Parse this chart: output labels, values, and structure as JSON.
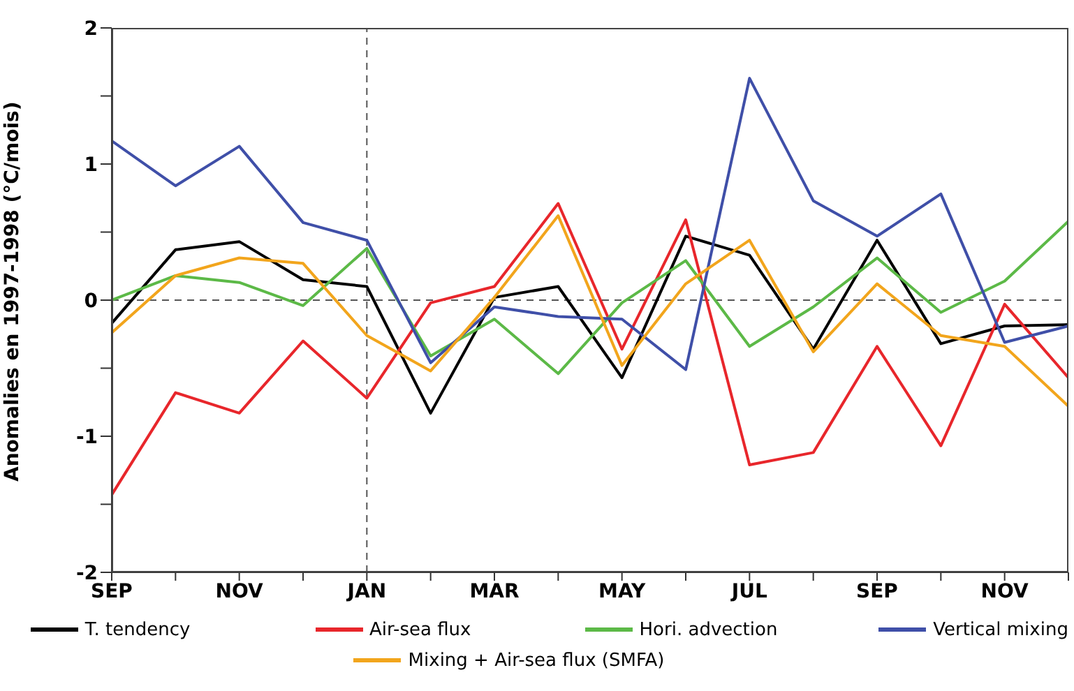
{
  "chart_data": {
    "type": "line",
    "ylabel": "Anomalies en 1997-1998 (°C/mois)",
    "categories": [
      "SEP",
      null,
      "NOV",
      null,
      "JAN",
      null,
      "MAR",
      null,
      "MAY",
      null,
      "JUL",
      null,
      "SEP",
      null,
      "NOV",
      null
    ],
    "ylim": [
      -2,
      2
    ],
    "yticks": [
      -2,
      {
        "value": -1.5,
        "label": null
      },
      -1,
      {
        "value": -0.5,
        "label": null
      },
      0,
      {
        "value": 0.5,
        "label": null
      },
      1,
      {
        "value": 1.5,
        "label": null
      },
      2
    ],
    "series": [
      {
        "name": "T. tendency",
        "color": "#000000",
        "values": [
          -0.17,
          0.37,
          0.43,
          0.15,
          0.1,
          -0.83,
          0.02,
          0.1,
          -0.57,
          0.47,
          0.33,
          -0.36,
          0.44,
          -0.32,
          -0.19,
          -0.18
        ]
      },
      {
        "name": "Air-sea flux",
        "color": "#e8262b",
        "values": [
          -1.43,
          -0.68,
          -0.83,
          -0.3,
          -0.72,
          -0.02,
          0.1,
          0.71,
          -0.36,
          0.59,
          -1.21,
          -1.12,
          -0.34,
          -1.07,
          -0.03,
          -0.57
        ]
      },
      {
        "name": "Hori. advection",
        "color": "#5cb947",
        "values": [
          0,
          0.18,
          0.13,
          -0.04,
          0.38,
          -0.41,
          -0.14,
          -0.54,
          -0.02,
          0.29,
          -0.34,
          -0.05,
          0.31,
          -0.09,
          0.14,
          0.58
        ]
      },
      {
        "name": "Vertical mixing",
        "color": "#3f4fa8",
        "values": [
          1.17,
          0.84,
          1.13,
          0.57,
          0.44,
          -0.46,
          -0.05,
          -0.12,
          -0.14,
          -0.51,
          1.63,
          0.73,
          0.47,
          0.78,
          -0.31,
          -0.19
        ]
      },
      {
        "name": "Mixing + Air-sea flux (SMFA)",
        "color": "#f2a51c",
        "values": [
          -0.24,
          0.18,
          0.31,
          0.27,
          -0.26,
          -0.52,
          0.02,
          0.62,
          -0.48,
          0.12,
          0.44,
          -0.38,
          0.12,
          -0.26,
          -0.34,
          -0.78
        ]
      }
    ],
    "ref_lines": [
      {
        "axis": "x",
        "value": "JAN",
        "line_style": "dashed"
      },
      {
        "axis": "y",
        "value": 0,
        "line_style": "dashed"
      }
    ],
    "legend": "bottom"
  }
}
